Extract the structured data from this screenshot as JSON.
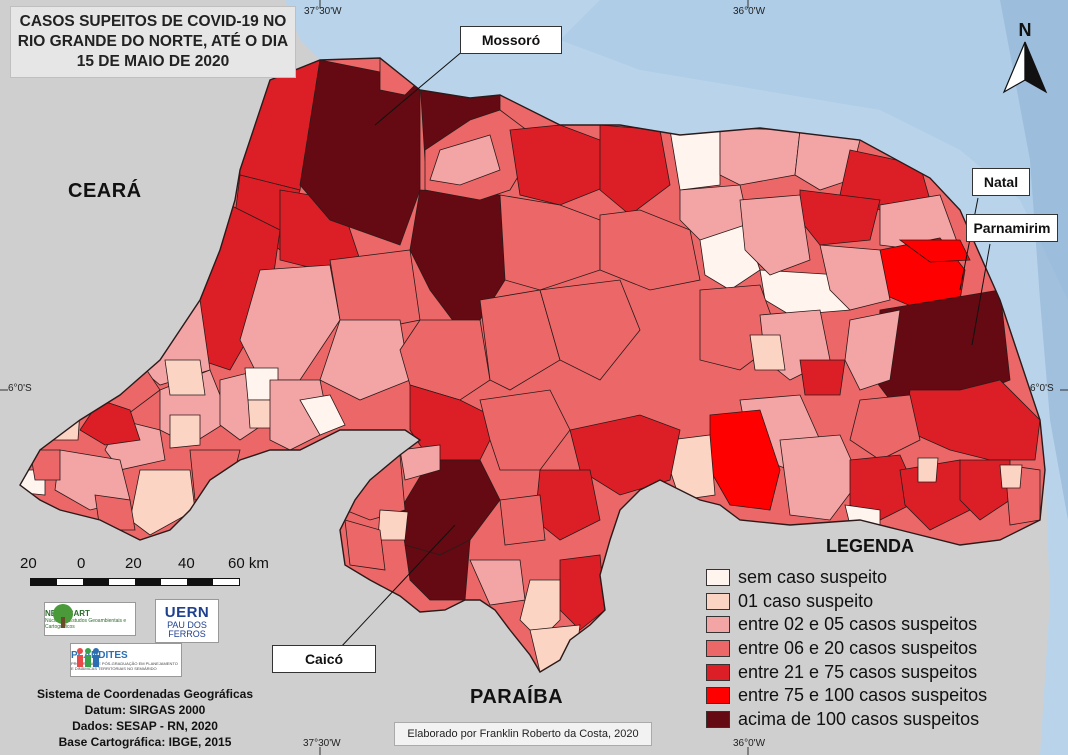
{
  "title": "CASOS SUPEITOS DE COVID-19 NO RIO GRANDE DO NORTE, ATÉ O DIA 15 DE MAIO DE 2020",
  "coordinates": {
    "top_left": "37°30'W",
    "top_right": "36°0'W",
    "bottom_left": "37°30'W",
    "bottom_right": "36°0'W",
    "left": "6°0'S",
    "right": "6°0'S"
  },
  "regions": {
    "west": "CEARÁ",
    "south": "PARAÍBA"
  },
  "cities": {
    "mossoro": "Mossoró",
    "natal": "Natal",
    "parnamirim": "Parnamirim",
    "caico": "Caicó"
  },
  "north_arrow": "N",
  "legend": {
    "title": "LEGENDA",
    "items": [
      {
        "label": "sem caso suspeito",
        "color": "#fff5ee"
      },
      {
        "label": "01 caso suspeito",
        "color": "#fbd4c4"
      },
      {
        "label": "entre 02 e 05 casos suspeitos",
        "color": "#f3a4a4"
      },
      {
        "label": "entre 06 e 20 casos suspeitos",
        "color": "#ec6767"
      },
      {
        "label": "entre 21 e 75 casos suspeitos",
        "color": "#dc1f26"
      },
      {
        "label": "entre 75 e 100 casos suspeitos",
        "color": "#ff0000"
      },
      {
        "label": "acima de 100 casos suspeitos",
        "color": "#650a12"
      }
    ]
  },
  "scale": {
    "labels": [
      "20",
      "0",
      "20",
      "40",
      "60 km"
    ]
  },
  "logos": {
    "negecart": "NEGECART",
    "negecart_sub": "Núcleo de Estudos Geoambientais e Cartográficos",
    "uern": "UERN",
    "uern_sub": "PAU DOS FERROS",
    "plandites": "PLANDITES",
    "plandites_sub": "PROGRAMA DE PÓS-GRADUAÇÃO EM PLANEJAMENTO E DINÂMICAS TERRITORIAIS NO SEMIÁRIDO"
  },
  "info": {
    "line1": "Sistema de Coordenadas Geográficas",
    "line2": "Datum: SIRGAS 2000",
    "line3": "Dados: SESAP - RN, 2020",
    "line4": "Base Cartográfica: IBGE, 2015"
  },
  "credit": "Elaborado por Franklin Roberto da Costa, 2020",
  "colors": {
    "ocean": "#b9d4ea",
    "land": "#cfcfcf",
    "border": "#2b1a1a"
  }
}
